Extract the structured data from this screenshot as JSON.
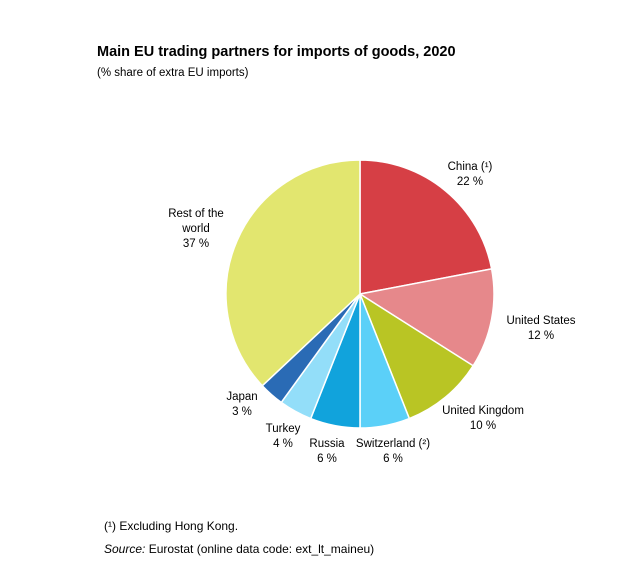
{
  "chart_data": {
    "type": "pie",
    "title": "Main EU trading partners for imports of goods, 2020",
    "subtitle": "(% share of extra EU imports)",
    "slices": [
      {
        "name": "China (¹)",
        "value": 22,
        "label": "22 %",
        "color": "#d63f45"
      },
      {
        "name": "United States",
        "value": 12,
        "label": "12 %",
        "color": "#e6888b"
      },
      {
        "name": "United Kingdom",
        "value": 10,
        "label": "10 %",
        "color": "#b9c524"
      },
      {
        "name": "Switzerland (²)",
        "value": 6,
        "label": "6 %",
        "color": "#5bd0f8"
      },
      {
        "name": "Russia",
        "value": 6,
        "label": "6 %",
        "color": "#11a3dc"
      },
      {
        "name": "Turkey",
        "value": 4,
        "label": "4 %",
        "color": "#93def9"
      },
      {
        "name": "Japan",
        "value": 3,
        "label": "3 %",
        "color": "#2a6bb5"
      },
      {
        "name": "Rest of the world",
        "value": 37,
        "label": "37 %",
        "color": "#e2e66f"
      }
    ]
  },
  "footnotes": {
    "note1": "(¹) Excluding Hong Kong.",
    "source_label": "Source:",
    "source_text": " Eurostat (online data code: ext_lt_maineu)"
  }
}
